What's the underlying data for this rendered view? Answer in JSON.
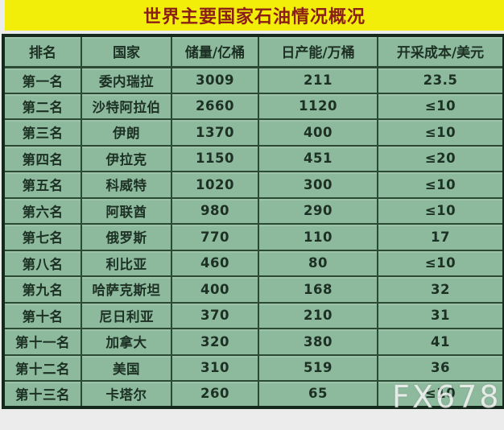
{
  "title": "世界主要国家石油情况概况",
  "watermark": "FX678",
  "chart_data": {
    "type": "table",
    "title": "世界主要国家石油情况概况",
    "columns": [
      "排名",
      "国家",
      "储量/亿桶",
      "日产能/万桶",
      "开采成本/美元"
    ],
    "column_meanings": [
      "rank",
      "country",
      "reserves (100M barrels)",
      "daily production capacity (10k barrels)",
      "extraction cost (USD)"
    ],
    "rows": [
      [
        "第一名",
        "委内瑞拉",
        "3009",
        "211",
        "23.5"
      ],
      [
        "第二名",
        "沙特阿拉伯",
        "2660",
        "1120",
        "≤10"
      ],
      [
        "第三名",
        "伊朗",
        "1370",
        "400",
        "≤10"
      ],
      [
        "第四名",
        "伊拉克",
        "1150",
        "451",
        "≤20"
      ],
      [
        "第五名",
        "科威特",
        "1020",
        "300",
        "≤10"
      ],
      [
        "第六名",
        "阿联酋",
        "980",
        "290",
        "≤10"
      ],
      [
        "第七名",
        "俄罗斯",
        "770",
        "110",
        "17"
      ],
      [
        "第八名",
        "利比亚",
        "460",
        "80",
        "≤10"
      ],
      [
        "第九名",
        "哈萨克斯坦",
        "400",
        "168",
        "32"
      ],
      [
        "第十名",
        "尼日利亚",
        "370",
        "210",
        "31"
      ],
      [
        "第十一名",
        "加拿大",
        "320",
        "380",
        "41"
      ],
      [
        "第十二名",
        "美国",
        "310",
        "519",
        "36"
      ],
      [
        "第十三名",
        "卡塔尔",
        "260",
        "65",
        "≤10"
      ]
    ]
  },
  "colors": {
    "title_bg": "#f2ee0a",
    "title_text": "#8a1f16",
    "table_bg": "#8dba9d",
    "grid_line": "#2a4a34",
    "outer_border": "#14291b",
    "cell_text": "#1c3024",
    "watermark": "#f5f5f5"
  }
}
